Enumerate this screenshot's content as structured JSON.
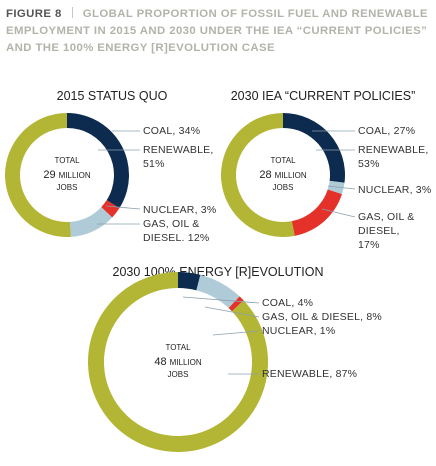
{
  "header": {
    "label": "FIGURE 8",
    "title": "GLOBAL PROPORTION OF FOSSIL FUEL AND RENEWABLE EMPLOYMENT IN 2015 AND 2030 UNDER THE IEA “CURRENT POLICIES” AND THE 100% ENERGY [R]EVOLUTION CASE"
  },
  "chart_data": [
    {
      "type": "pie",
      "title": "2015 STATUS QUO",
      "total_label": "TOTAL",
      "total": 29,
      "total_unit": "MILLION",
      "total_sub": "JOBS",
      "values": [
        34,
        3,
        12,
        51
      ],
      "value_labels": [
        "COAL, 34%",
        "NUCLEAR, 3%",
        "GAS, OIL & DIESEL. 12%",
        "RENEWABLE, 51%"
      ],
      "colors": [
        "#0d2b4e",
        "#e4322b",
        "#aecbd7",
        "#b3b634"
      ]
    },
    {
      "type": "pie",
      "title": "2030 IEA “CURRENT POLICIES”",
      "total_label": "TOTAL",
      "total": 28,
      "total_unit": "MILLION",
      "total_sub": "JOBS",
      "values": [
        27,
        3,
        17,
        53
      ],
      "value_labels": [
        "COAL, 27%",
        "NUCLEAR, 3%",
        "GAS, OIL & DIESEL, 17%",
        "RENEWABLE, 53%"
      ],
      "colors": [
        "#0d2b4e",
        "#aecbd7",
        "#e4322b",
        "#b3b634"
      ]
    },
    {
      "type": "pie",
      "title": "2030 100% ENERGY [R]EVOLUTION",
      "total_label": "TOTAL",
      "total": 48,
      "total_unit": "MILLION",
      "total_sub": "JOBS",
      "values": [
        4,
        8,
        1,
        87
      ],
      "value_labels": [
        "COAL, 4%",
        "GAS, OIL & DIESEL, 8%",
        "NUCLEAR, 1%",
        "RENEWABLE, 87%"
      ],
      "colors": [
        "#0d2b4e",
        "#aecbd7",
        "#e4322b",
        "#b3b634"
      ]
    }
  ]
}
